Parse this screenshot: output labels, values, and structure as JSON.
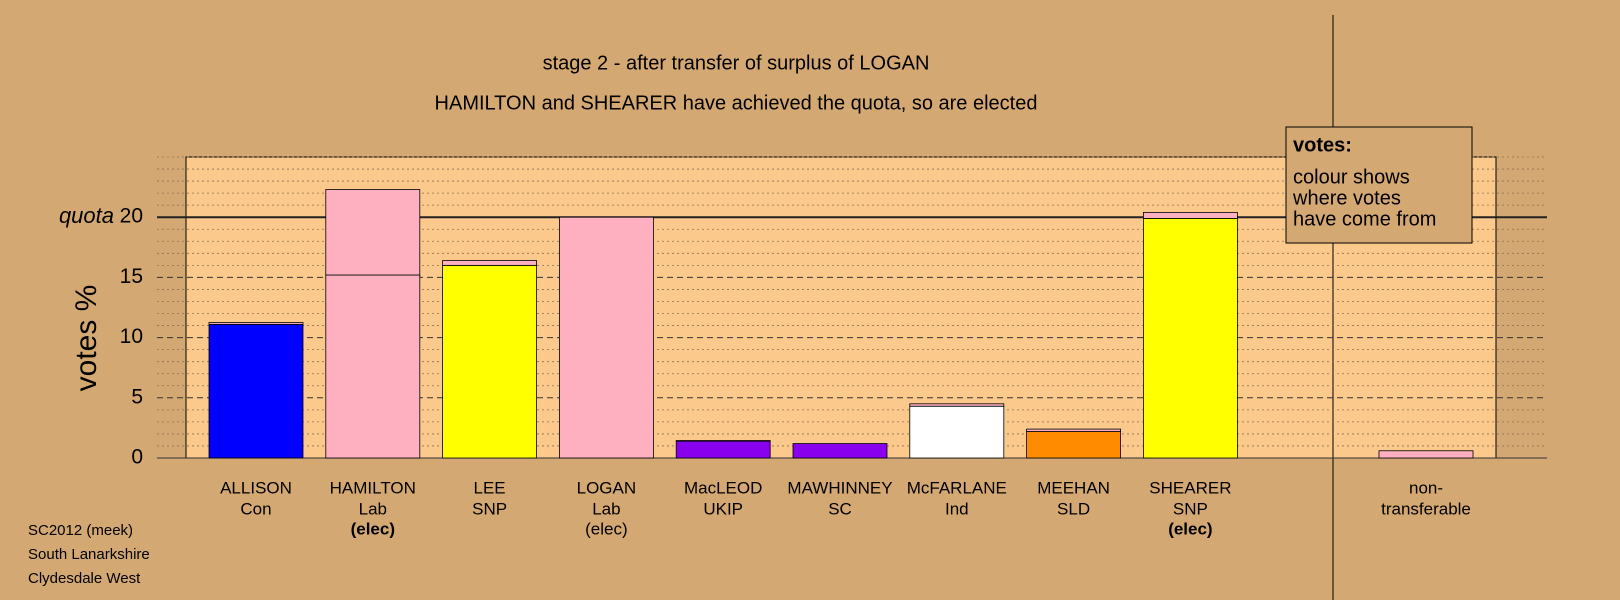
{
  "chart_data": {
    "type": "stacked-bar",
    "title": "stage 2 - after transfer of surplus of LOGAN",
    "subtitle": "HAMILTON and SHEARER have achieved the quota, so are elected",
    "y_label": "votes %",
    "quota_label": "quota",
    "quota": 20,
    "categories": [
      "ALLISON",
      "HAMILTON",
      "LEE",
      "LOGAN",
      "MacLEOD",
      "MAWHINNEY",
      "McFARLANE",
      "MEEHAN",
      "SHEARER",
      "non-"
    ],
    "parties": [
      "Con",
      "Lab",
      "SNP",
      "Lab",
      "UKIP",
      "SC",
      "Ind",
      "SLD",
      "SNP",
      "transferable"
    ],
    "status": [
      null,
      "(elec)",
      null,
      "(elec)",
      null,
      null,
      null,
      null,
      "(elec)",
      null
    ],
    "status_bold": [
      false,
      true,
      false,
      false,
      false,
      false,
      false,
      false,
      true,
      false
    ],
    "series": [
      {
        "colors": [
          "#0000ff",
          "#ffb0c0",
          "#ffff00",
          "#ffb0c0",
          "#8800ee",
          "#8800ee",
          "#ffffff",
          "#ff8c00",
          "#ffff00",
          "#ffb0c0"
        ],
        "values": [
          11.1,
          15.2,
          16.0,
          20.0,
          1.4,
          1.2,
          4.3,
          2.2,
          19.9,
          0
        ]
      },
      {
        "color": "#ffb0c0",
        "values": [
          0.15,
          7.1,
          0.4,
          0,
          0.05,
          0,
          0.2,
          0.2,
          0.5,
          0.6
        ]
      }
    ],
    "ylim": [
      0,
      25
    ],
    "yticks": [
      0,
      5,
      10,
      15,
      20
    ],
    "minor_step": 1,
    "grid": true,
    "legend_title": "votes:",
    "legend_lines": [
      "colour shows",
      "where votes",
      "have come from"
    ],
    "footer": [
      "SC2012 (meek)",
      "South Lanarkshire",
      "Clydesdale West"
    ]
  }
}
